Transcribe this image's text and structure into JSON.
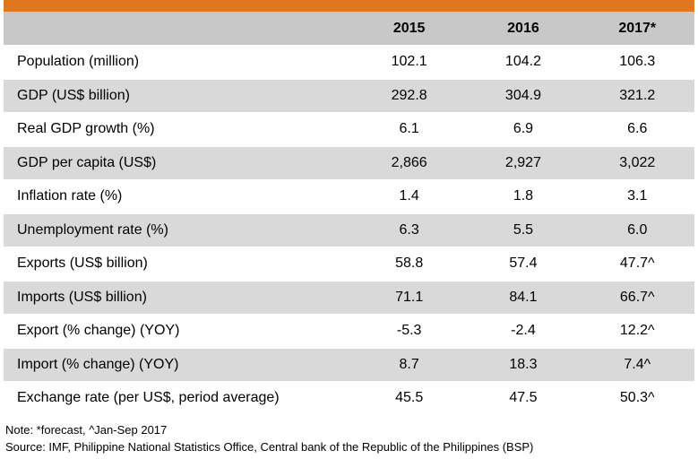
{
  "header": {
    "label": "",
    "years": [
      "2015",
      "2016",
      "2017*"
    ]
  },
  "rows": [
    {
      "label": "Population (million)",
      "values": [
        "102.1",
        "104.2",
        "106.3"
      ]
    },
    {
      "label": "GDP (US$ billion)",
      "values": [
        "292.8",
        "304.9",
        "321.2"
      ]
    },
    {
      "label": "Real GDP growth (%)",
      "values": [
        "6.1",
        "6.9",
        "6.6"
      ]
    },
    {
      "label": "GDP per capita (US$)",
      "values": [
        "2,866",
        "2,927",
        "3,022"
      ]
    },
    {
      "label": "Inflation rate (%)",
      "values": [
        "1.4",
        "1.8",
        "3.1"
      ]
    },
    {
      "label": "Unemployment rate (%)",
      "values": [
        "6.3",
        "5.5",
        "6.0"
      ]
    },
    {
      "label": "Exports (US$ billion)",
      "values": [
        "58.8",
        "57.4",
        "47.7^"
      ]
    },
    {
      "label": "Imports (US$ billion)",
      "values": [
        "71.1",
        "84.1",
        "66.7^"
      ]
    },
    {
      "label": "Export (% change) (YOY)",
      "values": [
        "-5.3",
        "-2.4",
        "12.2^"
      ]
    },
    {
      "label": "Import (% change) (YOY)",
      "values": [
        "8.7",
        "18.3",
        "7.4^"
      ]
    },
    {
      "label": "Exchange rate (per US$, period average)",
      "values": [
        "45.5",
        "47.5",
        "50.3^"
      ]
    }
  ],
  "notes": {
    "note": "Note: *forecast, ^Jan-Sep 2017",
    "source": "Source: IMF, Philippine National Statistics Office, Central bank of the Republic of the Philippines (BSP)"
  },
  "colors": {
    "accent_bar": "#e0761e",
    "header_fill": "#c8c8c8",
    "stripe_fill": "#d9d9d9"
  }
}
